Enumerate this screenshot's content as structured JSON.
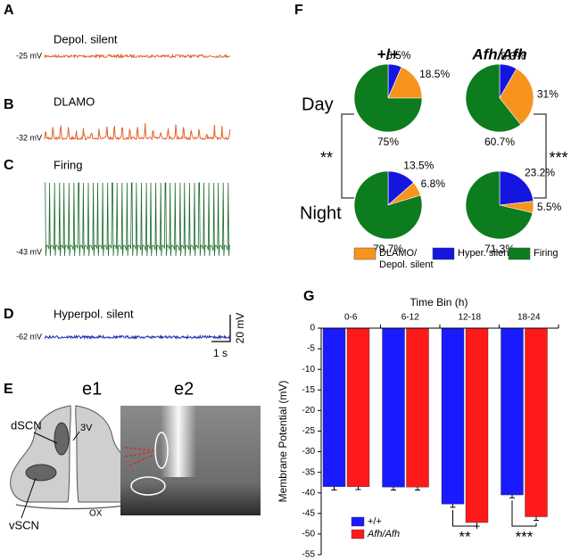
{
  "traces": [
    {
      "letter": "A",
      "label": "Depol. silent",
      "voltage": "-25 mV",
      "color": "#e2622d"
    },
    {
      "letter": "B",
      "label": "DLAMO",
      "voltage": "-32 mV",
      "color": "#e2622d"
    },
    {
      "letter": "C",
      "label": "Firing",
      "voltage": "-43 mV",
      "color": "#1c6b2c"
    },
    {
      "letter": "D",
      "label": "Hyperpol. silent",
      "voltage": "-62 mV",
      "color": "#1a2fb0"
    }
  ],
  "scale_bar": {
    "time": "1 s",
    "voltage": "20 mV"
  },
  "anatomy": {
    "letter": "E",
    "e1": "e1",
    "e2": "e2",
    "dscn": "dSCN",
    "vscn": "vSCN",
    "third_ventricle": "3V",
    "optic_chiasm": "OX"
  },
  "pie_panel": {
    "letter": "F",
    "columns": [
      "+/+",
      "Afh/Afh"
    ],
    "rows": [
      "Day",
      "Night"
    ],
    "significance": [
      "**",
      "***"
    ],
    "legend": [
      {
        "lines": [
          "DLAMO/",
          "Depol. silent"
        ],
        "color": "#f7941d"
      },
      {
        "lines": [
          "Hyper. silent"
        ],
        "color": "#1515e0"
      },
      {
        "lines": [
          "Firing"
        ],
        "color": "#0c7c1e"
      }
    ]
  },
  "chart_data": [
    {
      "type": "pie",
      "values": [
        6.5,
        18.5,
        75
      ],
      "value_labels": [
        "6.5%",
        "18.5%",
        "75%"
      ],
      "colors": [
        "#1515e0",
        "#f7941d",
        "#0c7c1e"
      ]
    },
    {
      "type": "pie",
      "values": [
        8.3,
        31,
        60.7
      ],
      "value_labels": [
        "8.3%",
        "31%",
        "60.7%"
      ],
      "colors": [
        "#1515e0",
        "#f7941d",
        "#0c7c1e"
      ]
    },
    {
      "type": "pie",
      "values": [
        13.5,
        6.8,
        79.7
      ],
      "value_labels": [
        "13.5%",
        "6.8%",
        "79.7%"
      ],
      "colors": [
        "#1515e0",
        "#f7941d",
        "#0c7c1e"
      ]
    },
    {
      "type": "pie",
      "values": [
        23.2,
        5.5,
        71.3
      ],
      "value_labels": [
        "23.2%",
        "5.5%",
        "71.3%"
      ],
      "colors": [
        "#1515e0",
        "#f7941d",
        "#0c7c1e"
      ]
    },
    {
      "type": "bar",
      "panel_letter": "G",
      "title": "Time Bin (h)",
      "y_label": "Membrane Potential (mV)",
      "categories": [
        "0-6",
        "6-12",
        "12-18",
        "18-24"
      ],
      "series": [
        {
          "name": "+/+",
          "color": "#1a1aff",
          "values": [
            -38.5,
            -38.6,
            -42.7,
            -40.5
          ],
          "errors": [
            0.8,
            0.7,
            0.8,
            0.7
          ]
        },
        {
          "name": "Afh/Afh",
          "color": "#ff1a1a",
          "values": [
            -38.5,
            -38.6,
            -47.2,
            -45.8
          ],
          "errors": [
            0.7,
            0.7,
            0.9,
            0.9
          ]
        }
      ],
      "ylim": [
        -55,
        0
      ],
      "yticks": [
        0,
        -5,
        -10,
        -15,
        -20,
        -25,
        -30,
        -35,
        -40,
        -45,
        -50,
        -55
      ],
      "significance": [
        null,
        null,
        "**",
        "***"
      ]
    }
  ]
}
